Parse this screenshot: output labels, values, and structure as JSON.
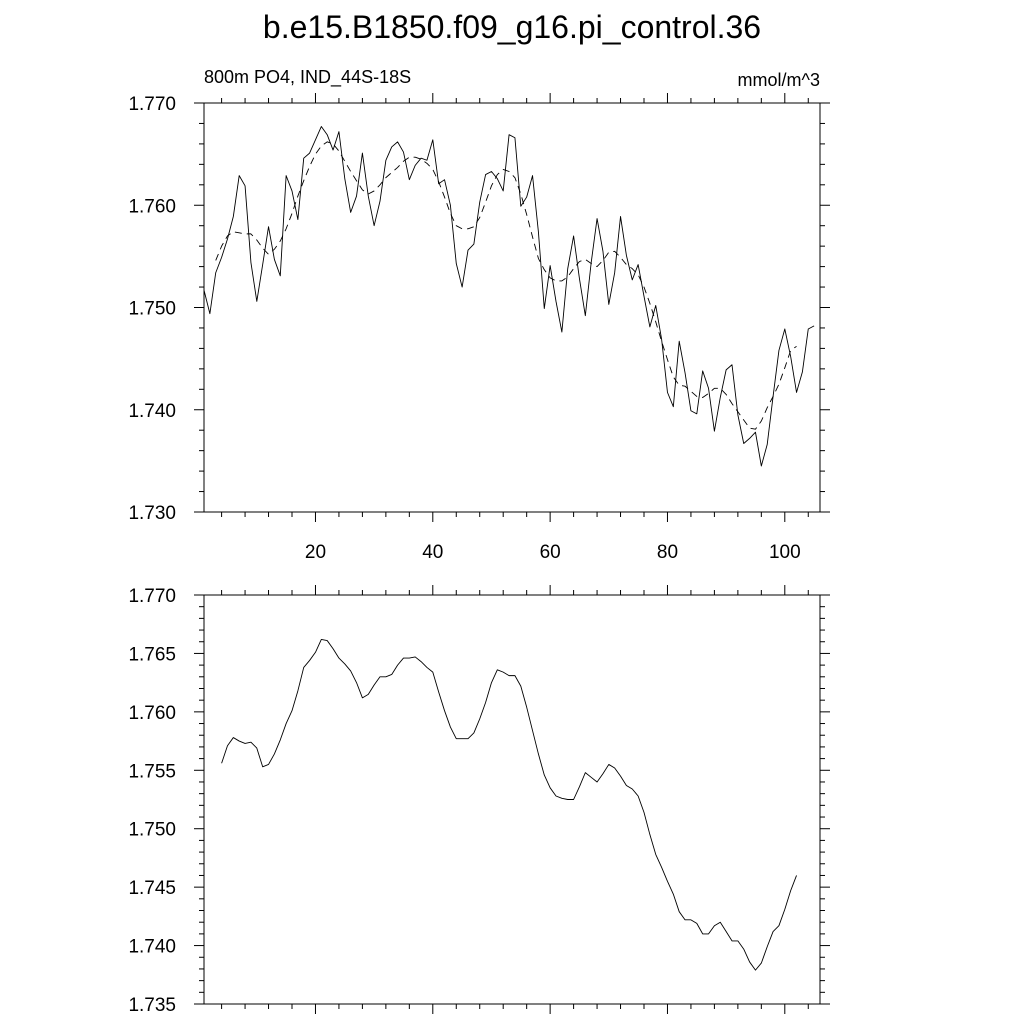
{
  "title": "b.e15.B1850.f09_g16.pi_control.36",
  "chart_data": [
    {
      "type": "line",
      "left_string": "800m PO4, IND_44S-18S",
      "right_string": "mmol/m^3",
      "xlim": [
        1,
        106
      ],
      "ylim": [
        1.73,
        1.77
      ],
      "x_ticks": [
        20,
        40,
        60,
        80,
        100
      ],
      "x_tick_labels": [
        "20",
        "40",
        "60",
        "80",
        "100"
      ],
      "y_ticks": [
        1.73,
        1.74,
        1.75,
        1.76,
        1.77
      ],
      "y_tick_labels": [
        "1.730",
        "1.740",
        "1.750",
        "1.760",
        "1.770"
      ],
      "series": [
        {
          "style": "solid",
          "x_start": 1,
          "values": [
            1.7517,
            1.7494,
            1.7534,
            1.7549,
            1.7567,
            1.7589,
            1.7629,
            1.7619,
            1.7544,
            1.7506,
            1.7542,
            1.7579,
            1.7547,
            1.7531,
            1.7629,
            1.7614,
            1.7586,
            1.7646,
            1.7651,
            1.7664,
            1.7677,
            1.7669,
            1.7654,
            1.7672,
            1.7626,
            1.7593,
            1.7609,
            1.7651,
            1.7609,
            1.758,
            1.7604,
            1.7644,
            1.7657,
            1.7662,
            1.7652,
            1.7625,
            1.7639,
            1.7646,
            1.7644,
            1.7664,
            1.7621,
            1.7625,
            1.76,
            1.7543,
            1.752,
            1.7556,
            1.7562,
            1.7603,
            1.763,
            1.7633,
            1.7626,
            1.7614,
            1.7669,
            1.7666,
            1.7599,
            1.7608,
            1.7629,
            1.7574,
            1.7499,
            1.7541,
            1.7506,
            1.7476,
            1.7538,
            1.757,
            1.7528,
            1.7492,
            1.7544,
            1.7587,
            1.7555,
            1.7503,
            1.7534,
            1.7589,
            1.7551,
            1.7527,
            1.7542,
            1.7511,
            1.7481,
            1.7502,
            1.7469,
            1.7417,
            1.7403,
            1.7467,
            1.7436,
            1.7399,
            1.7396,
            1.7438,
            1.7421,
            1.7379,
            1.7412,
            1.7439,
            1.7444,
            1.7395,
            1.7367,
            1.7372,
            1.7378,
            1.7345,
            1.7366,
            1.7413,
            1.7458,
            1.7479,
            1.7452,
            1.7417,
            1.7437,
            1.7479,
            1.7482
          ]
        },
        {
          "style": "dashed",
          "x_start": 3,
          "values": [
            1.7546,
            1.756,
            1.757,
            1.7574,
            1.7573,
            1.7572,
            1.7572,
            1.7566,
            1.7558,
            1.7552,
            1.7557,
            1.7565,
            1.7577,
            1.7592,
            1.7609,
            1.7624,
            1.7638,
            1.765,
            1.7658,
            1.7662,
            1.766,
            1.7653,
            1.7643,
            1.7633,
            1.7624,
            1.7615,
            1.7611,
            1.7614,
            1.762,
            1.7627,
            1.7632,
            1.7637,
            1.7643,
            1.7647,
            1.7647,
            1.7645,
            1.7641,
            1.7635,
            1.7623,
            1.7608,
            1.7592,
            1.758,
            1.7577,
            1.7577,
            1.7579,
            1.7588,
            1.7603,
            1.7619,
            1.763,
            1.7635,
            1.7633,
            1.7627,
            1.7611,
            1.7591,
            1.7569,
            1.7548,
            1.7537,
            1.7529,
            1.7526,
            1.7526,
            1.753,
            1.7538,
            1.7545,
            1.7547,
            1.7543,
            1.754,
            1.7546,
            1.7554,
            1.7555,
            1.7549,
            1.7542,
            1.7538,
            1.7532,
            1.752,
            1.7504,
            1.7486,
            1.7467,
            1.7449,
            1.7432,
            1.7424,
            1.7423,
            1.7418,
            1.7413,
            1.7412,
            1.7416,
            1.7421,
            1.7421,
            1.7415,
            1.7406,
            1.7398,
            1.739,
            1.7382,
            1.7381,
            1.7389,
            1.7402,
            1.7413,
            1.7425,
            1.7441,
            1.7458,
            1.7462
          ]
        }
      ]
    },
    {
      "type": "line",
      "xlim": [
        1,
        106
      ],
      "ylim": [
        1.735,
        1.77
      ],
      "x_ticks": [
        20,
        40,
        60,
        80,
        100
      ],
      "y_ticks": [
        1.735,
        1.74,
        1.745,
        1.75,
        1.755,
        1.76,
        1.765,
        1.77
      ],
      "y_tick_labels": [
        "1.735",
        "1.740",
        "1.745",
        "1.750",
        "1.755",
        "1.760",
        "1.765",
        "1.770"
      ],
      "series": [
        {
          "style": "solid",
          "x_start": 4,
          "values": [
            1.7556,
            1.7571,
            1.7578,
            1.7575,
            1.7573,
            1.7574,
            1.7569,
            1.7553,
            1.7555,
            1.7564,
            1.7576,
            1.759,
            1.7601,
            1.7618,
            1.7638,
            1.7644,
            1.7651,
            1.7662,
            1.7661,
            1.7654,
            1.7646,
            1.7641,
            1.7635,
            1.7625,
            1.7612,
            1.7615,
            1.7623,
            1.763,
            1.763,
            1.7632,
            1.764,
            1.7646,
            1.7646,
            1.7647,
            1.7643,
            1.7638,
            1.7634,
            1.7617,
            1.7601,
            1.7587,
            1.7577,
            1.7577,
            1.7577,
            1.7582,
            1.7594,
            1.7608,
            1.7625,
            1.7636,
            1.7634,
            1.7631,
            1.7631,
            1.7622,
            1.7604,
            1.7584,
            1.7564,
            1.7546,
            1.7535,
            1.7528,
            1.7526,
            1.7525,
            1.7525,
            1.7536,
            1.7548,
            1.7544,
            1.754,
            1.7547,
            1.7555,
            1.7552,
            1.7545,
            1.7537,
            1.7534,
            1.7528,
            1.7514,
            1.7495,
            1.7478,
            1.7467,
            1.7455,
            1.7444,
            1.7429,
            1.7422,
            1.7422,
            1.7419,
            1.741,
            1.741,
            1.7417,
            1.742,
            1.7412,
            1.7404,
            1.7404,
            1.7397,
            1.7386,
            1.7379,
            1.7385,
            1.7399,
            1.7412,
            1.7417,
            1.7431,
            1.7447,
            1.746
          ]
        }
      ]
    }
  ]
}
